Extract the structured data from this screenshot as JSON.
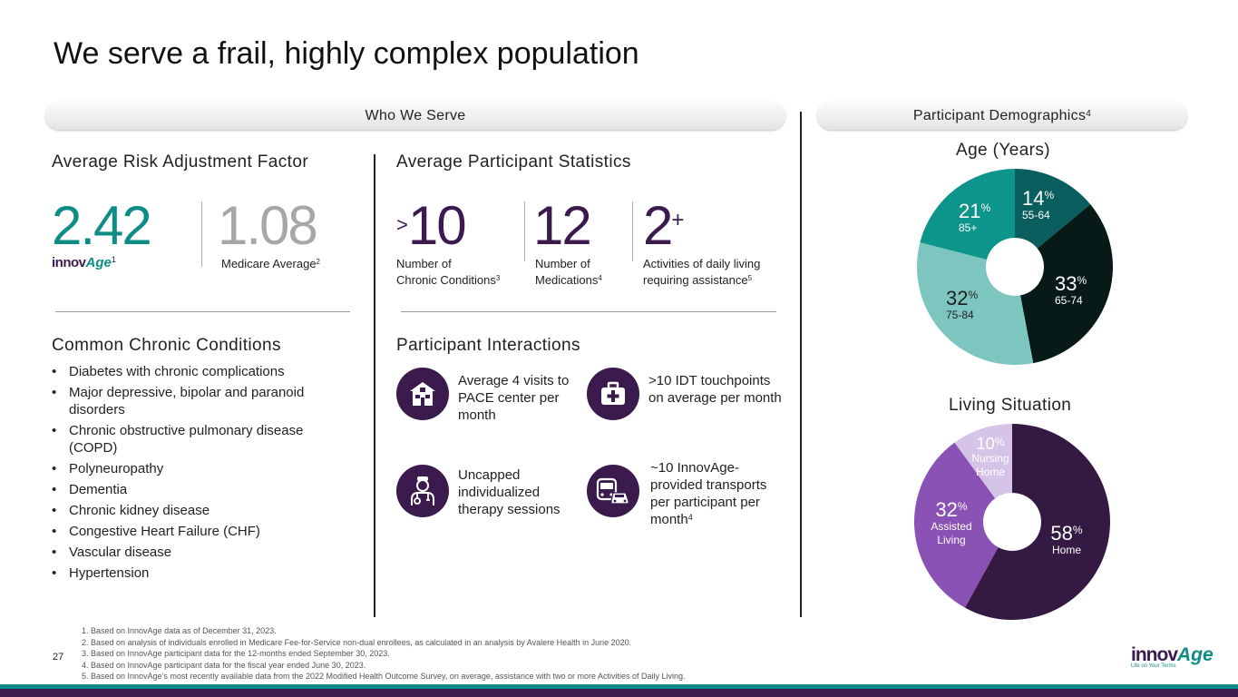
{
  "title": "We serve a frail, highly complex population",
  "who_we_serve": "Who We Serve",
  "demographics": {
    "label": "Participant Demographics",
    "sup": "4"
  },
  "risk": {
    "heading": "Average Risk Adjustment Factor",
    "value": "2.42",
    "logo_sup": "1",
    "medicare_value": "1.08",
    "medicare_label": "Medicare Average",
    "medicare_sup": "2"
  },
  "stats": {
    "heading": "Average Participant Statistics",
    "items": [
      {
        "prefix": ">",
        "value": "10",
        "suffix": "",
        "line1": "Number of",
        "line2": "Chronic Conditions",
        "sup": "3"
      },
      {
        "prefix": "",
        "value": "12",
        "suffix": "",
        "line1": "Number of",
        "line2": "Medications",
        "sup": "4"
      },
      {
        "prefix": "",
        "value": "2",
        "suffix": "+",
        "line1": "Activities of daily living",
        "line2": "requiring assistance",
        "sup": "5"
      }
    ]
  },
  "conditions": {
    "heading": "Common Chronic Conditions",
    "items": [
      "Diabetes with chronic complications",
      "Major depressive, bipolar and paranoid disorders",
      "Chronic obstructive pulmonary disease (COPD)",
      "Polyneuropathy",
      "Dementia",
      "Chronic kidney disease",
      "Congestive Heart Failure (CHF)",
      "Vascular disease",
      "Hypertension"
    ]
  },
  "interactions": {
    "heading": "Participant Interactions",
    "items": [
      {
        "icon": "house-icon",
        "text": "Average 4 visits to PACE center per month",
        "sup": ""
      },
      {
        "icon": "medical-kit-icon",
        "text": ">10 IDT touchpoints on average per month",
        "sup": ""
      },
      {
        "icon": "doctor-icon",
        "text": "Uncapped individualized therapy sessions",
        "sup": ""
      },
      {
        "icon": "bus-car-icon",
        "text": "~10 InnovAge-provided transports per participant per month",
        "sup": "4"
      }
    ]
  },
  "brand": {
    "logo_text_innov": "innov",
    "logo_text_age": "Age",
    "tagline": "Life on Your Terms"
  },
  "page_number": "27",
  "footnotes": [
    "1.  Based on InnovAge data as of December 31, 2023.",
    "2.  Based on analysis of individuals enrolled in Medicare Fee-for-Service non-dual enrollees, as calculated in an analysis by Avalere Health in June 2020.",
    "3.  Based on InnovAge participant data for the 12-months ended September 30, 2023.",
    "4.  Based on InnovAge participant data for the fiscal year ended June 30, 2023.",
    "5.  Based on InnovAge’s most recently available data from the 2022 Modified Health Outcome Survey, on average, assistance with two or more Activities of Daily Living."
  ],
  "colors": {
    "teal": "#0d8d85",
    "purple": "#3b1b4d",
    "grey": "#a7a7a7"
  },
  "chart_data": [
    {
      "type": "pie",
      "title": "Age (Years)",
      "unit": "%",
      "categories": [
        "55-64",
        "65-74",
        "75-84",
        "85+"
      ],
      "values": [
        14,
        33,
        32,
        21
      ],
      "colors": [
        "#0b5e5e",
        "#071a18",
        "#7dc6c0",
        "#0d948b"
      ]
    },
    {
      "type": "pie",
      "title": "Living Situation",
      "unit": "%",
      "categories": [
        "Home",
        "Assisted Living",
        "Nursing Home"
      ],
      "values": [
        58,
        32,
        10
      ],
      "colors": [
        "#341a42",
        "#8a52b5",
        "#d6c4e8"
      ]
    }
  ]
}
